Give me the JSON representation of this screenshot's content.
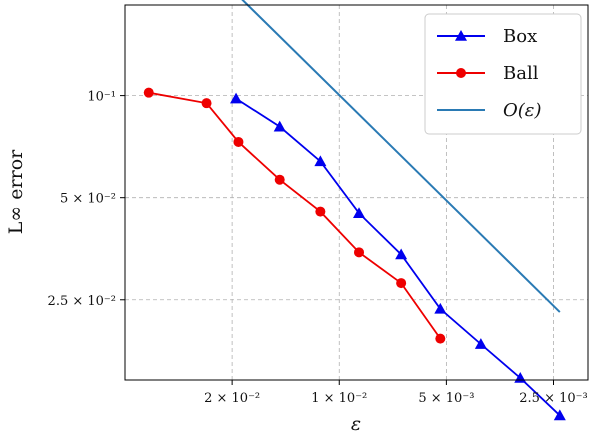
{
  "chart_data": {
    "type": "line",
    "scale": {
      "x": "log",
      "y": "log"
    },
    "x_inverted": true,
    "xlabel": "ε",
    "ylabel": "L∞ error",
    "xlim": [
      0.04,
      0.002
    ],
    "ylim": [
      0.0145,
      0.185
    ],
    "grid": true,
    "grid_style": "dashed",
    "legend_position": "top-right",
    "x_ticks": [
      {
        "value": 0.02,
        "label": "2 × 10⁻²"
      },
      {
        "value": 0.01,
        "label": "1 × 10⁻²"
      },
      {
        "value": 0.005,
        "label": "5 × 10⁻³"
      },
      {
        "value": 0.0025,
        "label": "2.5 × 10⁻³"
      }
    ],
    "y_ticks": [
      {
        "value": 0.1,
        "label": "10⁻¹"
      },
      {
        "value": 0.05,
        "label": "5 × 10⁻²"
      },
      {
        "value": 0.025,
        "label": "2.5 × 10⁻²"
      }
    ],
    "series": [
      {
        "name": "Box",
        "color": "#0000ee",
        "marker": "triangle",
        "x": [
          0.0195,
          0.0147,
          0.0113,
          0.0088,
          0.0067,
          0.0052,
          0.004,
          0.0031,
          0.0024
        ],
        "y": [
          0.098,
          0.081,
          0.064,
          0.045,
          0.034,
          0.0235,
          0.0185,
          0.0147,
          0.0114
        ]
      },
      {
        "name": "Ball",
        "color": "#ee0000",
        "marker": "circle",
        "x": [
          0.0343,
          0.0236,
          0.0192,
          0.0147,
          0.0113,
          0.0088,
          0.0067,
          0.0052
        ],
        "y": [
          0.102,
          0.095,
          0.073,
          0.0565,
          0.0455,
          0.0345,
          0.028,
          0.0192
        ]
      },
      {
        "name": "O(ε)",
        "color": "#2a7ab4",
        "marker": "none",
        "x": [
          0.0195,
          0.0024
        ],
        "y": [
          0.2,
          0.023
        ]
      }
    ]
  }
}
